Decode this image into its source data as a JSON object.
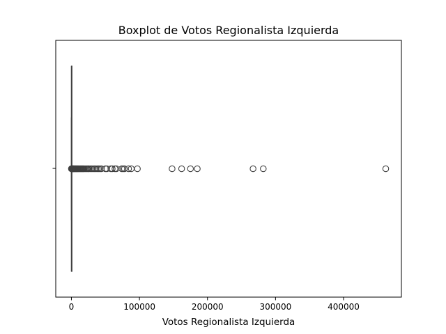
{
  "chart_data": {
    "type": "box",
    "orientation": "horizontal",
    "title": "Boxplot de Votos Regionalista Izquierda",
    "xlabel": "Votos Regionalista Izquierda",
    "ylabel": "",
    "xlim": [
      -23000,
      485000
    ],
    "xticks": [
      0,
      100000,
      200000,
      300000,
      400000
    ],
    "xtick_labels": [
      "0",
      "100000",
      "200000",
      "300000",
      "400000"
    ],
    "grid": false,
    "box": {
      "min": 0,
      "q1": 0,
      "median": 0,
      "q3": 0,
      "whisker_low": 0,
      "whisker_high": 0
    },
    "outliers": [
      50,
      150,
      300,
      500,
      800,
      1200,
      1600,
      2000,
      2500,
      3000,
      3600,
      4200,
      5000,
      5800,
      6500,
      7300,
      8000,
      8800,
      9600,
      10500,
      11500,
      12500,
      13500,
      14500,
      15500,
      16500,
      17500,
      18500,
      20000,
      21500,
      23000,
      24500,
      26000,
      28000,
      30000,
      32000,
      34000,
      36000,
      38000,
      40000,
      42000,
      44000,
      50000,
      52000,
      58000,
      60000,
      64000,
      66000,
      74000,
      76000,
      78000,
      84000,
      88000,
      97000,
      148000,
      162000,
      175000,
      185000,
      267000,
      282000,
      462000
    ],
    "colors": {
      "line": "#3f3f3f",
      "outlier_edge": "#3f3f3f",
      "outlier_fill": "none",
      "axes": "#000000"
    }
  }
}
